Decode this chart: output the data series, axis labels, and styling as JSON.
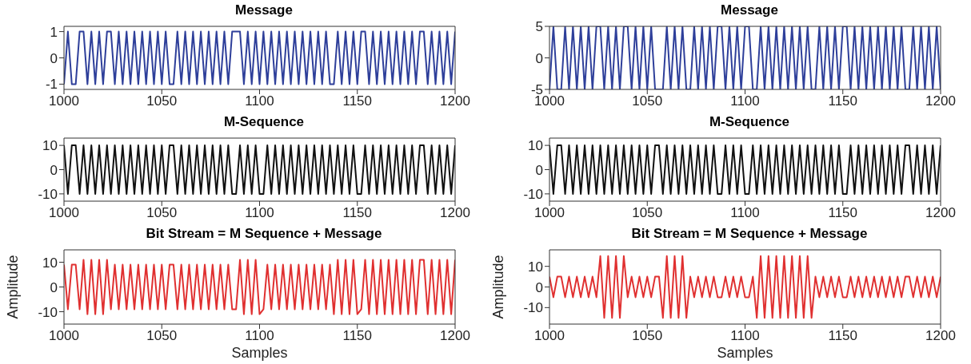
{
  "chart_data": [
    {
      "type": "line",
      "title": "Message",
      "xlim": [
        1000,
        1200
      ],
      "xticks": [
        1000,
        1050,
        1100,
        1150,
        1200
      ],
      "ylim": [
        -1.2,
        1.2
      ],
      "yticks": [
        -1,
        0,
        1
      ],
      "x": [
        1000,
        1002,
        1004,
        1006,
        1008,
        1010,
        1012,
        1014,
        1016,
        1018,
        1020,
        1022,
        1024,
        1026,
        1028,
        1030,
        1032,
        1034,
        1036,
        1038,
        1040,
        1042,
        1044,
        1046,
        1048,
        1050,
        1052,
        1054,
        1056,
        1058,
        1060,
        1062,
        1064,
        1066,
        1068,
        1070,
        1072,
        1074,
        1076,
        1078,
        1080,
        1082,
        1084,
        1086,
        1088,
        1090,
        1092,
        1094,
        1096,
        1098,
        1100,
        1102,
        1104,
        1106,
        1108,
        1110,
        1112,
        1114,
        1116,
        1118,
        1120,
        1122,
        1124,
        1126,
        1128,
        1130,
        1132,
        1134,
        1136,
        1138,
        1140,
        1142,
        1144,
        1146,
        1148,
        1150,
        1152,
        1154,
        1156,
        1158,
        1160,
        1162,
        1164,
        1166,
        1168,
        1170,
        1172,
        1174,
        1176,
        1178,
        1180,
        1182,
        1184,
        1186,
        1188,
        1190,
        1192,
        1194,
        1196,
        1198,
        1200
      ],
      "series": [
        {
          "color": "#2e3f9a",
          "values": [
            -1,
            1,
            -1,
            -1,
            1,
            1,
            -1,
            1,
            -1,
            1,
            -1,
            1,
            1,
            -1,
            1,
            -1,
            1,
            -1,
            1,
            -1,
            1,
            -1,
            1,
            -1,
            1,
            -1,
            1,
            -1,
            -1,
            1,
            -1,
            1,
            -1,
            1,
            -1,
            1,
            -1,
            1,
            -1,
            1,
            -1,
            1,
            -1,
            1,
            1,
            1,
            -1,
            1,
            -1,
            1,
            -1,
            1,
            -1,
            1,
            -1,
            1,
            -1,
            1,
            -1,
            1,
            -1,
            1,
            -1,
            1,
            -1,
            1,
            -1,
            1,
            -1,
            -1,
            1,
            -1,
            1,
            -1,
            1,
            -1,
            1,
            1,
            -1,
            1,
            -1,
            1,
            -1,
            1,
            -1,
            1,
            -1,
            1,
            -1,
            1,
            -1,
            1,
            1,
            -1,
            1,
            -1,
            1,
            -1,
            1,
            -1,
            1
          ]
        }
      ]
    },
    {
      "type": "line",
      "title": "Message",
      "xlim": [
        1000,
        1200
      ],
      "xticks": [
        1000,
        1050,
        1100,
        1150,
        1200
      ],
      "ylim": [
        -5,
        5
      ],
      "yticks": [
        -5,
        0,
        5
      ],
      "x": [
        1000,
        1002,
        1004,
        1006,
        1008,
        1010,
        1012,
        1014,
        1016,
        1018,
        1020,
        1022,
        1024,
        1026,
        1028,
        1030,
        1032,
        1034,
        1036,
        1038,
        1040,
        1042,
        1044,
        1046,
        1048,
        1050,
        1052,
        1054,
        1056,
        1058,
        1060,
        1062,
        1064,
        1066,
        1068,
        1070,
        1072,
        1074,
        1076,
        1078,
        1080,
        1082,
        1084,
        1086,
        1088,
        1090,
        1092,
        1094,
        1096,
        1098,
        1100,
        1102,
        1104,
        1106,
        1108,
        1110,
        1112,
        1114,
        1116,
        1118,
        1120,
        1122,
        1124,
        1126,
        1128,
        1130,
        1132,
        1134,
        1136,
        1138,
        1140,
        1142,
        1144,
        1146,
        1148,
        1150,
        1152,
        1154,
        1156,
        1158,
        1160,
        1162,
        1164,
        1166,
        1168,
        1170,
        1172,
        1174,
        1176,
        1178,
        1180,
        1182,
        1184,
        1186,
        1188,
        1190,
        1192,
        1194,
        1196,
        1198,
        1200
      ],
      "series": [
        {
          "color": "#2e3f9a",
          "values": [
            -5,
            5,
            -5,
            -5,
            5,
            -5,
            5,
            -5,
            5,
            -5,
            5,
            -5,
            5,
            5,
            -5,
            5,
            -5,
            5,
            -5,
            5,
            5,
            -5,
            5,
            -5,
            5,
            -5,
            5,
            -5,
            -5,
            -5,
            5,
            -5,
            5,
            -5,
            5,
            -5,
            -5,
            5,
            -5,
            5,
            -5,
            5,
            -5,
            5,
            5,
            -5,
            5,
            -5,
            5,
            -5,
            5,
            5,
            -5,
            -5,
            5,
            -5,
            5,
            -5,
            5,
            -5,
            5,
            -5,
            5,
            -5,
            5,
            -5,
            5,
            -5,
            -5,
            5,
            -5,
            5,
            -5,
            5,
            -5,
            5,
            5,
            -5,
            5,
            -5,
            5,
            -5,
            5,
            -5,
            5,
            -5,
            5,
            -5,
            5,
            -5,
            5,
            -5,
            -5,
            5,
            -5,
            5,
            -5,
            5,
            -5,
            5,
            -5
          ]
        }
      ]
    },
    {
      "type": "line",
      "title": "M-Sequence",
      "xlim": [
        1000,
        1200
      ],
      "xticks": [
        1000,
        1050,
        1100,
        1150,
        1200
      ],
      "ylim": [
        -13,
        13
      ],
      "yticks": [
        -10,
        0,
        10
      ],
      "x": [
        1000,
        1002,
        1004,
        1006,
        1008,
        1010,
        1012,
        1014,
        1016,
        1018,
        1020,
        1022,
        1024,
        1026,
        1028,
        1030,
        1032,
        1034,
        1036,
        1038,
        1040,
        1042,
        1044,
        1046,
        1048,
        1050,
        1052,
        1054,
        1056,
        1058,
        1060,
        1062,
        1064,
        1066,
        1068,
        1070,
        1072,
        1074,
        1076,
        1078,
        1080,
        1082,
        1084,
        1086,
        1088,
        1090,
        1092,
        1094,
        1096,
        1098,
        1100,
        1102,
        1104,
        1106,
        1108,
        1110,
        1112,
        1114,
        1116,
        1118,
        1120,
        1122,
        1124,
        1126,
        1128,
        1130,
        1132,
        1134,
        1136,
        1138,
        1140,
        1142,
        1144,
        1146,
        1148,
        1150,
        1152,
        1154,
        1156,
        1158,
        1160,
        1162,
        1164,
        1166,
        1168,
        1170,
        1172,
        1174,
        1176,
        1178,
        1180,
        1182,
        1184,
        1186,
        1188,
        1190,
        1192,
        1194,
        1196,
        1198,
        1200
      ],
      "series": [
        {
          "color": "#111111",
          "values": [
            10,
            -10,
            10,
            10,
            -10,
            10,
            -10,
            10,
            -10,
            10,
            -10,
            10,
            -10,
            10,
            -10,
            10,
            -10,
            10,
            -10,
            10,
            -10,
            10,
            -10,
            10,
            -10,
            10,
            -10,
            10,
            10,
            -10,
            10,
            -10,
            10,
            -10,
            10,
            -10,
            10,
            -10,
            10,
            -10,
            10,
            -10,
            10,
            -10,
            -10,
            10,
            -10,
            10,
            -10,
            10,
            -10,
            -10,
            10,
            -10,
            10,
            -10,
            10,
            -10,
            10,
            -10,
            10,
            -10,
            10,
            -10,
            10,
            -10,
            10,
            -10,
            10,
            -10,
            10,
            -10,
            10,
            -10,
            10,
            -10,
            -10,
            10,
            -10,
            10,
            -10,
            10,
            -10,
            10,
            -10,
            10,
            -10,
            10,
            -10,
            10,
            -10,
            10,
            10,
            -10,
            10,
            -10,
            10,
            -10,
            10,
            -10,
            10
          ]
        }
      ]
    },
    {
      "type": "line",
      "title": "M-Sequence",
      "xlim": [
        1000,
        1200
      ],
      "xticks": [
        1000,
        1050,
        1100,
        1150,
        1200
      ],
      "ylim": [
        -13,
        13
      ],
      "yticks": [
        -10,
        0,
        10
      ],
      "x": [
        1000,
        1002,
        1004,
        1006,
        1008,
        1010,
        1012,
        1014,
        1016,
        1018,
        1020,
        1022,
        1024,
        1026,
        1028,
        1030,
        1032,
        1034,
        1036,
        1038,
        1040,
        1042,
        1044,
        1046,
        1048,
        1050,
        1052,
        1054,
        1056,
        1058,
        1060,
        1062,
        1064,
        1066,
        1068,
        1070,
        1072,
        1074,
        1076,
        1078,
        1080,
        1082,
        1084,
        1086,
        1088,
        1090,
        1092,
        1094,
        1096,
        1098,
        1100,
        1102,
        1104,
        1106,
        1108,
        1110,
        1112,
        1114,
        1116,
        1118,
        1120,
        1122,
        1124,
        1126,
        1128,
        1130,
        1132,
        1134,
        1136,
        1138,
        1140,
        1142,
        1144,
        1146,
        1148,
        1150,
        1152,
        1154,
        1156,
        1158,
        1160,
        1162,
        1164,
        1166,
        1168,
        1170,
        1172,
        1174,
        1176,
        1178,
        1180,
        1182,
        1184,
        1186,
        1188,
        1190,
        1192,
        1194,
        1196,
        1198,
        1200
      ],
      "series": [
        {
          "color": "#111111",
          "values": [
            10,
            -10,
            10,
            10,
            -10,
            10,
            -10,
            10,
            -10,
            10,
            -10,
            10,
            -10,
            10,
            -10,
            10,
            -10,
            10,
            -10,
            10,
            -10,
            10,
            -10,
            10,
            -10,
            10,
            -10,
            10,
            10,
            -10,
            10,
            -10,
            10,
            -10,
            10,
            -10,
            10,
            -10,
            10,
            -10,
            10,
            -10,
            10,
            -10,
            -10,
            10,
            -10,
            10,
            -10,
            10,
            -10,
            -10,
            10,
            -10,
            10,
            -10,
            10,
            -10,
            10,
            -10,
            10,
            -10,
            10,
            -10,
            10,
            -10,
            10,
            -10,
            10,
            -10,
            10,
            -10,
            10,
            -10,
            10,
            -10,
            -10,
            10,
            -10,
            10,
            -10,
            10,
            -10,
            10,
            -10,
            10,
            -10,
            10,
            -10,
            10,
            -10,
            10,
            10,
            -10,
            10,
            -10,
            10,
            -10,
            10,
            -10,
            10
          ]
        }
      ]
    },
    {
      "type": "line",
      "title": "Bit Stream = M Sequence + Message",
      "xlabel": "Samples",
      "ylabel": "Amplitude",
      "xlim": [
        1000,
        1200
      ],
      "xticks": [
        1000,
        1050,
        1100,
        1150,
        1200
      ],
      "ylim": [
        -15,
        15
      ],
      "yticks": [
        -10,
        0,
        10
      ],
      "x": [
        1000,
        1002,
        1004,
        1006,
        1008,
        1010,
        1012,
        1014,
        1016,
        1018,
        1020,
        1022,
        1024,
        1026,
        1028,
        1030,
        1032,
        1034,
        1036,
        1038,
        1040,
        1042,
        1044,
        1046,
        1048,
        1050,
        1052,
        1054,
        1056,
        1058,
        1060,
        1062,
        1064,
        1066,
        1068,
        1070,
        1072,
        1074,
        1076,
        1078,
        1080,
        1082,
        1084,
        1086,
        1088,
        1090,
        1092,
        1094,
        1096,
        1098,
        1100,
        1102,
        1104,
        1106,
        1108,
        1110,
        1112,
        1114,
        1116,
        1118,
        1120,
        1122,
        1124,
        1126,
        1128,
        1130,
        1132,
        1134,
        1136,
        1138,
        1140,
        1142,
        1144,
        1146,
        1148,
        1150,
        1152,
        1154,
        1156,
        1158,
        1160,
        1162,
        1164,
        1166,
        1168,
        1170,
        1172,
        1174,
        1176,
        1178,
        1180,
        1182,
        1184,
        1186,
        1188,
        1190,
        1192,
        1194,
        1196,
        1198,
        1200
      ],
      "series": [
        {
          "color": "#e03030",
          "values": [
            9,
            -9,
            9,
            9,
            -9,
            11,
            -11,
            11,
            -11,
            11,
            -11,
            11,
            -9,
            9,
            -9,
            9,
            -9,
            9,
            -9,
            9,
            -9,
            9,
            -9,
            9,
            -9,
            9,
            -9,
            9,
            9,
            -9,
            9,
            -9,
            9,
            -9,
            9,
            -9,
            9,
            -9,
            9,
            -9,
            9,
            -9,
            9,
            -9,
            -9,
            11,
            -11,
            11,
            -11,
            11,
            -11,
            -9,
            9,
            -9,
            9,
            -9,
            9,
            -9,
            9,
            -9,
            9,
            -9,
            9,
            -9,
            9,
            -9,
            9,
            -9,
            9,
            -11,
            11,
            -11,
            11,
            -11,
            11,
            -11,
            -9,
            11,
            -11,
            11,
            -11,
            11,
            -11,
            11,
            -11,
            11,
            -11,
            11,
            -11,
            11,
            -11,
            11,
            11,
            -11,
            11,
            -11,
            11,
            -11,
            11,
            -11,
            11
          ]
        }
      ]
    },
    {
      "type": "line",
      "title": "Bit Stream = M Sequence + Message",
      "xlabel": "Samples",
      "ylabel": "Amplitude",
      "xlim": [
        1000,
        1200
      ],
      "xticks": [
        1000,
        1050,
        1100,
        1150,
        1200
      ],
      "ylim": [
        -18,
        18
      ],
      "yticks": [
        -10,
        0,
        10
      ],
      "x": [
        1000,
        1002,
        1004,
        1006,
        1008,
        1010,
        1012,
        1014,
        1016,
        1018,
        1020,
        1022,
        1024,
        1026,
        1028,
        1030,
        1032,
        1034,
        1036,
        1038,
        1040,
        1042,
        1044,
        1046,
        1048,
        1050,
        1052,
        1054,
        1056,
        1058,
        1060,
        1062,
        1064,
        1066,
        1068,
        1070,
        1072,
        1074,
        1076,
        1078,
        1080,
        1082,
        1084,
        1086,
        1088,
        1090,
        1092,
        1094,
        1096,
        1098,
        1100,
        1102,
        1104,
        1106,
        1108,
        1110,
        1112,
        1114,
        1116,
        1118,
        1120,
        1122,
        1124,
        1126,
        1128,
        1130,
        1132,
        1134,
        1136,
        1138,
        1140,
        1142,
        1144,
        1146,
        1148,
        1150,
        1152,
        1154,
        1156,
        1158,
        1160,
        1162,
        1164,
        1166,
        1168,
        1170,
        1172,
        1174,
        1176,
        1178,
        1180,
        1182,
        1184,
        1186,
        1188,
        1190,
        1192,
        1194,
        1196,
        1198,
        1200
      ],
      "series": [
        {
          "color": "#e03030",
          "values": [
            5,
            -5,
            5,
            5,
            -5,
            5,
            -5,
            5,
            -5,
            5,
            -5,
            5,
            -5,
            15,
            -15,
            15,
            -15,
            15,
            -15,
            15,
            -5,
            5,
            -5,
            5,
            -5,
            5,
            -5,
            5,
            5,
            -15,
            15,
            -15,
            15,
            -15,
            15,
            -15,
            5,
            -5,
            5,
            -5,
            5,
            -5,
            5,
            -5,
            -5,
            5,
            -5,
            5,
            -5,
            5,
            -5,
            -5,
            5,
            -15,
            15,
            -15,
            15,
            -15,
            15,
            -15,
            15,
            -15,
            15,
            -15,
            15,
            -15,
            15,
            -15,
            5,
            -5,
            5,
            -5,
            5,
            -5,
            5,
            -5,
            -5,
            5,
            -5,
            5,
            -5,
            5,
            -5,
            5,
            -5,
            5,
            -5,
            5,
            -5,
            5,
            -5,
            5,
            5,
            -5,
            5,
            -5,
            5,
            -5,
            5,
            -5,
            5
          ]
        }
      ]
    }
  ]
}
